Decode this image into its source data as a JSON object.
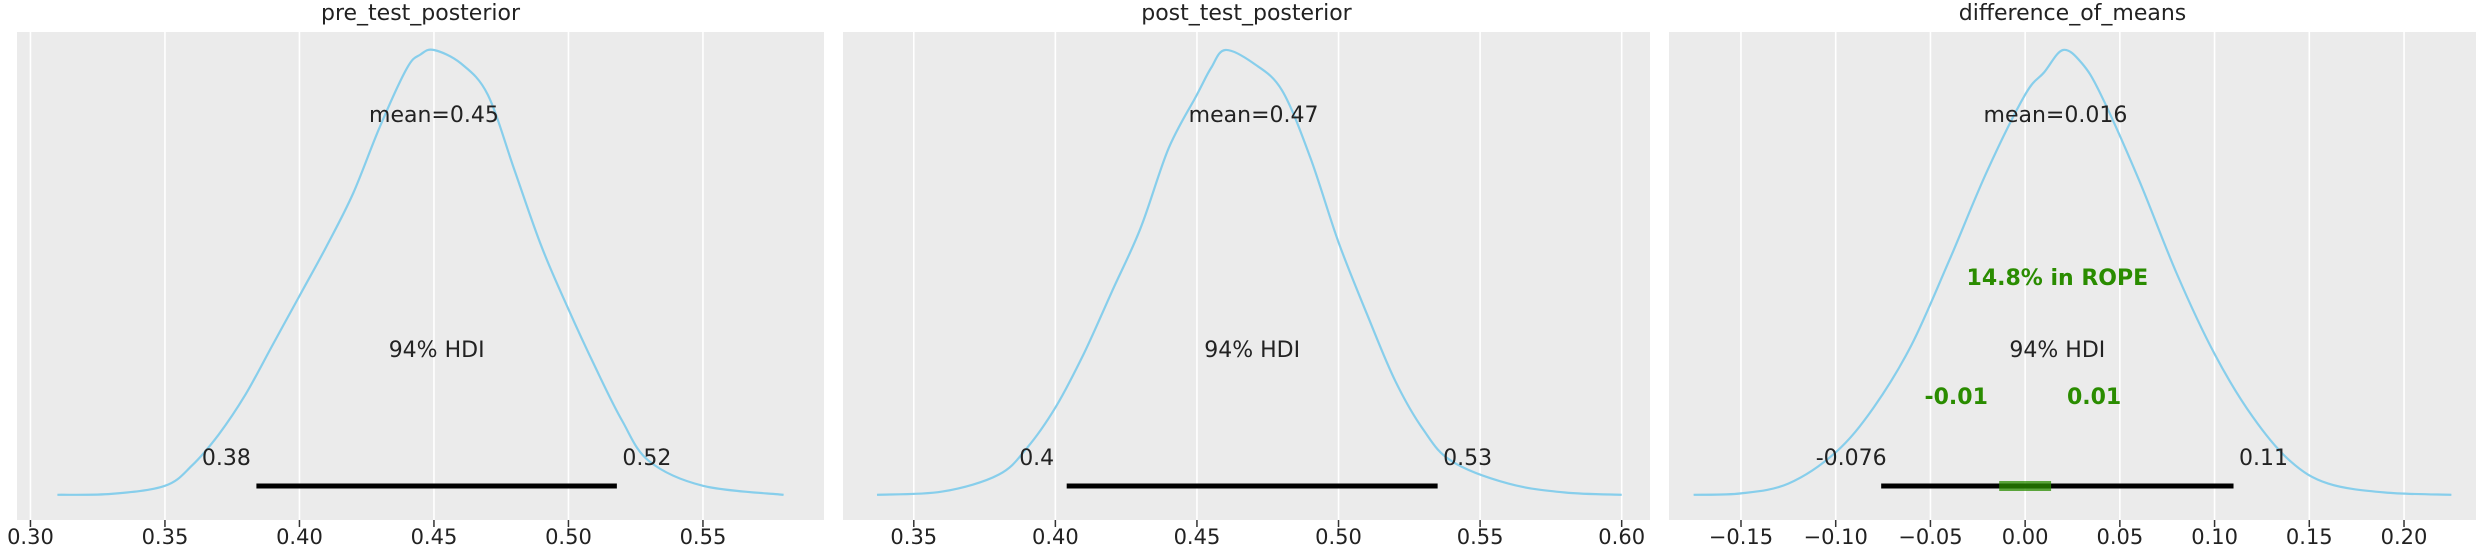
{
  "chart_data": [
    {
      "type": "area",
      "title": "pre_test_posterior",
      "xlim": [
        0.295,
        0.595
      ],
      "ticks": [
        0.3,
        0.35,
        0.4,
        0.45,
        0.5,
        0.55
      ],
      "tick_labels": [
        "0.30",
        "0.35",
        "0.40",
        "0.45",
        "0.50",
        "0.55"
      ],
      "grid": true,
      "color": "#87CEEB",
      "kde": {
        "x": [
          0.31,
          0.33,
          0.35,
          0.36,
          0.37,
          0.38,
          0.39,
          0.4,
          0.41,
          0.42,
          0.43,
          0.44,
          0.445,
          0.45,
          0.46,
          0.47,
          0.48,
          0.49,
          0.5,
          0.51,
          0.52,
          0.53,
          0.55,
          0.58
        ],
        "y": [
          0.005,
          0.007,
          0.025,
          0.07,
          0.14,
          0.23,
          0.34,
          0.45,
          0.56,
          0.68,
          0.83,
          0.96,
          0.99,
          1.0,
          0.97,
          0.9,
          0.73,
          0.56,
          0.42,
          0.29,
          0.17,
          0.08,
          0.025,
          0.005
        ]
      },
      "mean": 0.45,
      "mean_label": "mean=0.45",
      "hdi": [
        0.384,
        0.518
      ],
      "hdi_label": "94% HDI",
      "hdi_lower_label": "0.38",
      "hdi_upper_label": "0.52"
    },
    {
      "type": "area",
      "title": "post_test_posterior",
      "xlim": [
        0.325,
        0.61
      ],
      "ticks": [
        0.35,
        0.4,
        0.45,
        0.5,
        0.55,
        0.6
      ],
      "tick_labels": [
        "0.35",
        "0.40",
        "0.45",
        "0.50",
        "0.55",
        "0.60"
      ],
      "grid": true,
      "color": "#87CEEB",
      "kde": {
        "x": [
          0.337,
          0.36,
          0.38,
          0.39,
          0.4,
          0.41,
          0.42,
          0.43,
          0.44,
          0.45,
          0.455,
          0.46,
          0.47,
          0.48,
          0.49,
          0.5,
          0.51,
          0.52,
          0.53,
          0.54,
          0.56,
          0.58,
          0.6
        ],
        "y": [
          0.005,
          0.012,
          0.05,
          0.11,
          0.2,
          0.32,
          0.46,
          0.6,
          0.78,
          0.9,
          0.96,
          1.0,
          0.97,
          0.91,
          0.76,
          0.57,
          0.41,
          0.26,
          0.15,
          0.08,
          0.03,
          0.01,
          0.005
        ]
      },
      "mean": 0.47,
      "mean_label": "mean=0.47",
      "hdi": [
        0.404,
        0.535
      ],
      "hdi_label": "94% HDI",
      "hdi_lower_label": "0.4",
      "hdi_upper_label": "0.53"
    },
    {
      "type": "area",
      "title": "difference_of_means",
      "xlim": [
        -0.188,
        0.238
      ],
      "ticks": [
        -0.15,
        -0.1,
        -0.05,
        0.0,
        0.05,
        0.1,
        0.15,
        0.2
      ],
      "tick_labels": [
        "−0.15",
        "−0.10",
        "−0.05",
        "0.00",
        "0.05",
        "0.10",
        "0.15",
        "0.20"
      ],
      "grid": true,
      "color": "#87CEEB",
      "kde": {
        "x": [
          -0.175,
          -0.15,
          -0.125,
          -0.1,
          -0.08,
          -0.06,
          -0.04,
          -0.02,
          0.0,
          0.01,
          0.02,
          0.03,
          0.04,
          0.06,
          0.08,
          0.1,
          0.12,
          0.14,
          0.16,
          0.19,
          0.225
        ],
        "y": [
          0.005,
          0.008,
          0.03,
          0.1,
          0.2,
          0.34,
          0.53,
          0.73,
          0.9,
          0.95,
          1.0,
          0.97,
          0.9,
          0.71,
          0.5,
          0.32,
          0.18,
          0.08,
          0.03,
          0.01,
          0.005
        ]
      },
      "mean": 0.016,
      "mean_label": "mean=0.016",
      "hdi": [
        -0.076,
        0.11
      ],
      "hdi_label": "94% HDI",
      "hdi_lower_label": "-0.076",
      "hdi_upper_label": "0.11",
      "rope": [
        -0.01,
        0.01
      ],
      "rope_pct_label": "14.8% in ROPE",
      "rope_lower_label": "-0.01",
      "rope_upper_label": "0.01",
      "rope_color": "#2A8C00"
    }
  ]
}
